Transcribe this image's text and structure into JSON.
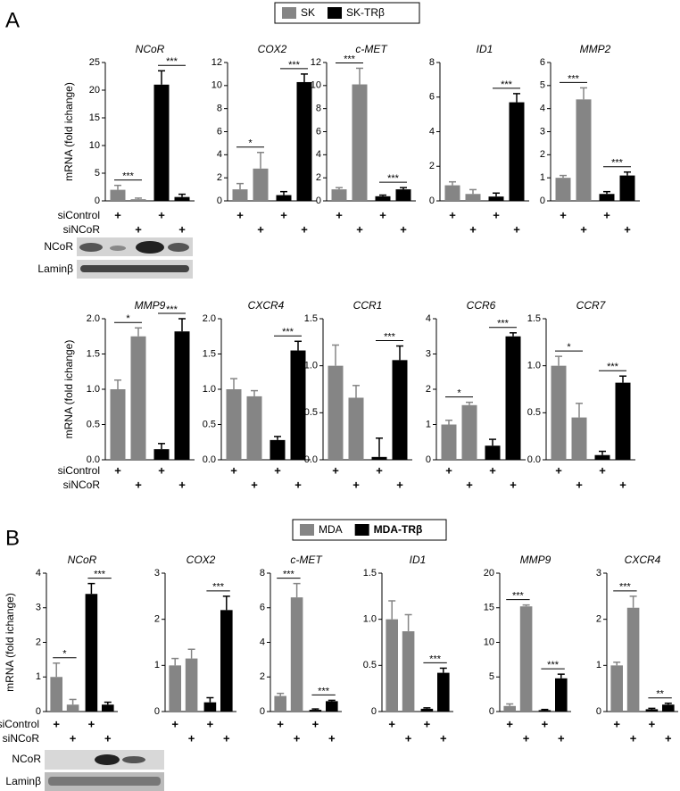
{
  "panels": [
    {
      "label": "A",
      "legend": [
        {
          "name": "SK",
          "color": "#858585"
        },
        {
          "name": "SK-TRβ",
          "color": "#000000"
        }
      ]
    },
    {
      "label": "B",
      "legend": [
        {
          "name": "MDA",
          "color": "#858585"
        },
        {
          "name": "MDA-TRβ",
          "color": "#000000"
        }
      ]
    }
  ],
  "ylabel": "mRNA (fold ichange)",
  "conditions": [
    "siControl",
    "siNCoR"
  ],
  "condition_mark": "+",
  "blot_labels": [
    "NCoR",
    "Laminβ"
  ],
  "chart_data": [
    {
      "type": "bar",
      "title": "NCoR",
      "values": [
        2.0,
        0.3,
        21,
        0.7
      ],
      "errors": [
        0.8,
        0.2,
        2.5,
        0.5
      ],
      "significance": [
        "***",
        "***"
      ],
      "ylim": [
        0,
        25
      ],
      "yticks": [
        0,
        5,
        10,
        15,
        20,
        25
      ]
    },
    {
      "type": "bar",
      "title": "COX2",
      "values": [
        1.0,
        2.8,
        0.5,
        10.3
      ],
      "errors": [
        0.5,
        1.4,
        0.3,
        0.7
      ],
      "significance": [
        "*",
        "***"
      ],
      "ylim": [
        0,
        12
      ],
      "yticks": [
        0,
        2,
        4,
        6,
        8,
        10,
        12
      ]
    },
    {
      "type": "bar",
      "title": "c-MET",
      "values": [
        1.0,
        10.1,
        0.4,
        1.0
      ],
      "errors": [
        0.15,
        1.4,
        0.1,
        0.15
      ],
      "significance": [
        "***",
        "***"
      ],
      "ylim": [
        0,
        12
      ],
      "yticks": [
        0,
        2,
        4,
        6,
        8,
        10,
        12
      ]
    },
    {
      "type": "bar",
      "title": "ID1",
      "values": [
        0.9,
        0.4,
        0.25,
        5.7
      ],
      "errors": [
        0.2,
        0.25,
        0.2,
        0.5
      ],
      "significance": [
        null,
        "***"
      ],
      "ylim": [
        0,
        8
      ],
      "yticks": [
        0,
        2,
        4,
        6,
        8
      ]
    },
    {
      "type": "bar",
      "title": "MMP2",
      "values": [
        1.0,
        4.4,
        0.3,
        1.1
      ],
      "errors": [
        0.1,
        0.5,
        0.1,
        0.15
      ],
      "significance": [
        "***",
        "***"
      ],
      "ylim": [
        0,
        6
      ],
      "yticks": [
        0,
        1,
        2,
        3,
        4,
        5,
        6
      ]
    },
    {
      "type": "bar",
      "title": "MMP9",
      "values": [
        1.0,
        1.75,
        0.15,
        1.82
      ],
      "errors": [
        0.13,
        0.12,
        0.08,
        0.18
      ],
      "significance": [
        "*",
        "***"
      ],
      "ylim": [
        0,
        2
      ],
      "yticks": [
        {
          "value": 0,
          "label": "0.0"
        },
        0.5,
        {
          "value": 1,
          "label": "1.0"
        },
        1.5,
        {
          "value": 2,
          "label": "2.0"
        }
      ]
    },
    {
      "type": "bar",
      "title": "CXCR4",
      "values": [
        1.0,
        0.9,
        0.28,
        1.55
      ],
      "errors": [
        0.15,
        0.08,
        0.05,
        0.13
      ],
      "significance": [
        null,
        "***"
      ],
      "ylim": [
        0,
        2
      ],
      "yticks": [
        {
          "value": 0,
          "label": "0.0"
        },
        0.5,
        {
          "value": 1,
          "label": "1.0"
        },
        1.5,
        {
          "value": 2,
          "label": "2.0"
        }
      ]
    },
    {
      "type": "bar",
      "title": "CCR1",
      "values": [
        1.0,
        0.66,
        0.03,
        1.06
      ],
      "errors": [
        0.22,
        0.13,
        0.2,
        0.15
      ],
      "significance": [
        null,
        "***"
      ],
      "ylim": [
        0,
        1.5
      ],
      "yticks": [
        {
          "value": 0,
          "label": "0.0"
        },
        0.5,
        {
          "value": 1,
          "label": "1.0"
        },
        1.5
      ]
    },
    {
      "type": "bar",
      "title": "CCR6",
      "values": [
        1.0,
        1.55,
        0.4,
        3.5
      ],
      "errors": [
        0.12,
        0.08,
        0.18,
        0.1
      ],
      "significance": [
        "*",
        "***"
      ],
      "ylim": [
        0,
        4
      ],
      "yticks": [
        0,
        1,
        2,
        3,
        4
      ]
    },
    {
      "type": "bar",
      "title": "CCR7",
      "values": [
        1.0,
        0.45,
        0.05,
        0.82
      ],
      "errors": [
        0.1,
        0.15,
        0.04,
        0.07
      ],
      "significance": [
        "*",
        "***"
      ],
      "ylim": [
        0,
        1.5
      ],
      "yticks": [
        {
          "value": 0,
          "label": "0.0"
        },
        0.5,
        {
          "value": 1,
          "label": "1.0"
        },
        1.5
      ]
    },
    {
      "type": "bar",
      "title": "NCoR",
      "values": [
        1.0,
        0.2,
        3.4,
        0.2
      ],
      "errors": [
        0.4,
        0.15,
        0.3,
        0.07
      ],
      "significance": [
        "*",
        "***"
      ],
      "ylim": [
        0,
        4
      ],
      "yticks": [
        0,
        1,
        2,
        3,
        4
      ]
    },
    {
      "type": "bar",
      "title": "COX2",
      "values": [
        1.0,
        1.15,
        0.2,
        2.2
      ],
      "errors": [
        0.15,
        0.2,
        0.1,
        0.3
      ],
      "significance": [
        null,
        "***"
      ],
      "ylim": [
        0,
        3
      ],
      "yticks": [
        0,
        1,
        2,
        3
      ]
    },
    {
      "type": "bar",
      "title": "c-MET",
      "values": [
        0.9,
        6.6,
        0.1,
        0.6
      ],
      "errors": [
        0.15,
        0.8,
        0.05,
        0.05
      ],
      "significance": [
        "***",
        "***"
      ],
      "ylim": [
        0,
        8
      ],
      "yticks": [
        0,
        2,
        4,
        6,
        8
      ]
    },
    {
      "type": "bar",
      "title": "ID1",
      "values": [
        1.0,
        0.87,
        0.03,
        0.42
      ],
      "errors": [
        0.2,
        0.18,
        0.01,
        0.05
      ],
      "significance": [
        null,
        "***"
      ],
      "ylim": [
        0,
        1.5
      ],
      "yticks": [
        0,
        0.5,
        {
          "value": 1,
          "label": "1.0"
        },
        1.5
      ]
    },
    {
      "type": "bar",
      "title": "MMP9",
      "values": [
        0.8,
        15.2,
        0.2,
        4.8
      ],
      "errors": [
        0.3,
        0.2,
        0.1,
        0.6
      ],
      "significance": [
        "***",
        "***"
      ],
      "ylim": [
        0,
        20
      ],
      "yticks": [
        0,
        5,
        10,
        15,
        20
      ]
    },
    {
      "type": "bar",
      "title": "CXCR4",
      "values": [
        1.0,
        2.25,
        0.05,
        0.15
      ],
      "errors": [
        0.07,
        0.25,
        0.02,
        0.03
      ],
      "significance": [
        "***",
        "**"
      ],
      "ylim": [
        0,
        3
      ],
      "yticks": [
        0,
        1,
        2,
        3
      ]
    }
  ]
}
